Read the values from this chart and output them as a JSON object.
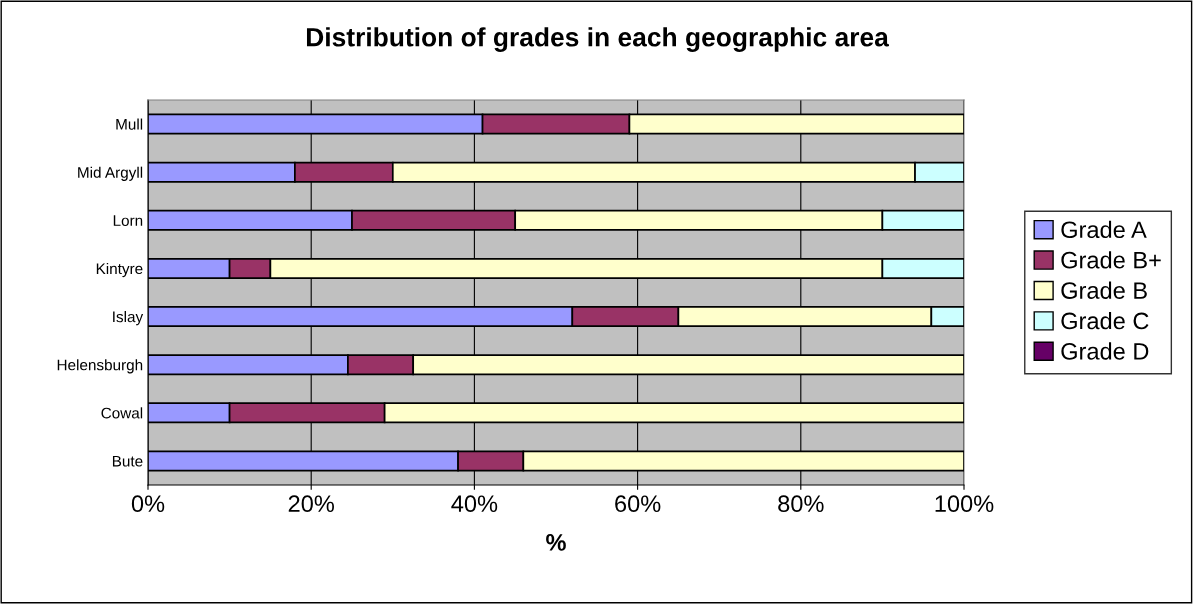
{
  "chart_data": {
    "type": "bar",
    "orientation": "horizontal",
    "stacked": true,
    "title": "Distribution of grades in each geographic area",
    "xlabel": "%",
    "categories": [
      "Mull",
      "Mid Argyll",
      "Lorn",
      "Kintyre",
      "Islay",
      "Helensburgh",
      "Cowal",
      "Bute"
    ],
    "series": [
      {
        "name": "Grade A",
        "color": "#9999ff",
        "values": [
          41,
          18,
          25,
          10,
          52,
          24.5,
          10,
          38
        ]
      },
      {
        "name": "Grade B+",
        "color": "#993366",
        "values": [
          18,
          12,
          20,
          5,
          13,
          8,
          19,
          8
        ]
      },
      {
        "name": "Grade B",
        "color": "#ffffcc",
        "values": [
          41,
          64,
          45,
          75,
          31,
          67.5,
          71,
          54
        ]
      },
      {
        "name": "Grade C",
        "color": "#ccffff",
        "values": [
          null,
          6,
          10,
          10,
          4,
          null,
          null,
          null
        ]
      },
      {
        "name": "Grade D",
        "color": "#660066",
        "values": [
          null,
          null,
          null,
          null,
          null,
          null,
          null,
          null
        ]
      }
    ],
    "xlim": [
      0,
      100
    ],
    "xticks": [
      {
        "value": 0,
        "label": "0%"
      },
      {
        "value": 20,
        "label": "20%"
      },
      {
        "value": 40,
        "label": "40%"
      },
      {
        "value": 60,
        "label": "60%"
      },
      {
        "value": 80,
        "label": "80%"
      },
      {
        "value": 100,
        "label": "100%"
      }
    ],
    "grid": "x",
    "legend": "right"
  }
}
